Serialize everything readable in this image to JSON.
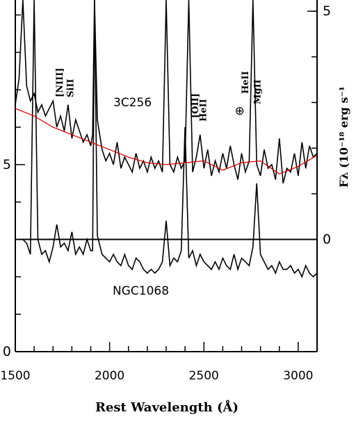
{
  "chart_data": {
    "type": "line",
    "xlabel": "Rest Wavelength (Å)",
    "ylabel_right": "Fλ (10⁻¹⁸ erg s⁻¹",
    "xlim": [
      1500,
      3100
    ],
    "x_ticks": [
      "1500",
      "2000",
      "2500",
      "3000"
    ],
    "x_tick_values": [
      1500,
      2000,
      2500,
      3000
    ],
    "y_left_ticks": [
      {
        "label": "0",
        "value": 0
      },
      {
        "label": "5",
        "value": 5
      }
    ],
    "y_right_ticks": [
      {
        "label": "0",
        "value": 0
      },
      {
        "label": "5",
        "value": 5
      }
    ],
    "ylim_left": [
      0,
      9.4
    ],
    "objects": [
      {
        "name": "3C256"
      },
      {
        "name": "NGC1068"
      }
    ],
    "zero_line_value": 3.0,
    "line_labels": [
      {
        "text": "[NIII]",
        "x": 1750
      },
      {
        "text": "SiII",
        "x": 1808
      },
      {
        "text": "[OII]",
        "x": 2470
      },
      {
        "text": "HeII",
        "x": 2512
      },
      {
        "text": "⊕",
        "x": 2690
      },
      {
        "text": "HeII",
        "x": 2735
      },
      {
        "text": "MgII",
        "x": 2800
      }
    ],
    "continuum_fit_3c256": {
      "x": [
        1500,
        1600,
        1700,
        1800,
        1900,
        2000,
        2100,
        2200,
        2300,
        2400,
        2500,
        2600,
        2700,
        2800,
        2900,
        3000,
        3100
      ],
      "y": [
        6.5,
        6.3,
        6.0,
        5.8,
        5.6,
        5.4,
        5.2,
        5.05,
        5.0,
        5.05,
        5.1,
        4.85,
        5.05,
        5.1,
        4.75,
        4.95,
        5.25
      ]
    },
    "spectrum_3c256": {
      "x": [
        1500,
        1520,
        1540,
        1560,
        1580,
        1600,
        1620,
        1640,
        1660,
        1680,
        1700,
        1720,
        1740,
        1760,
        1780,
        1800,
        1820,
        1840,
        1860,
        1880,
        1900,
        1910,
        1920,
        1935,
        1960,
        1980,
        2000,
        2020,
        2040,
        2060,
        2080,
        2100,
        2120,
        2140,
        2160,
        2180,
        2200,
        2220,
        2240,
        2260,
        2280,
        2300,
        2320,
        2340,
        2360,
        2380,
        2400,
        2420,
        2440,
        2460,
        2480,
        2500,
        2520,
        2540,
        2560,
        2580,
        2600,
        2620,
        2640,
        2660,
        2680,
        2700,
        2720,
        2740,
        2760,
        2780,
        2800,
        2820,
        2840,
        2860,
        2880,
        2900,
        2920,
        2940,
        2960,
        2980,
        3000,
        3020,
        3040,
        3060,
        3080,
        3100
      ],
      "y": [
        6.6,
        7.3,
        9.4,
        7.1,
        6.7,
        6.9,
        6.4,
        6.6,
        6.3,
        6.5,
        6.7,
        6.0,
        6.3,
        5.9,
        6.6,
        5.7,
        6.2,
        5.9,
        5.6,
        5.8,
        5.5,
        5.8,
        9.4,
        6.2,
        5.4,
        5.1,
        5.3,
        5.0,
        5.6,
        4.9,
        5.2,
        5.0,
        4.8,
        5.3,
        4.9,
        5.1,
        4.8,
        5.2,
        4.9,
        5.1,
        4.8,
        9.4,
        5.0,
        4.8,
        5.2,
        4.9,
        5.1,
        9.4,
        4.8,
        5.2,
        5.8,
        4.9,
        5.4,
        4.7,
        5.1,
        4.8,
        5.3,
        4.9,
        5.5,
        5.0,
        4.6,
        5.3,
        4.8,
        5.1,
        9.4,
        5.0,
        4.7,
        5.4,
        4.9,
        5.0,
        4.6,
        5.7,
        4.5,
        4.9,
        4.8,
        5.3,
        4.7,
        5.6,
        4.9,
        5.5,
        5.2,
        5.3
      ]
    },
    "spectrum_ngc1068": {
      "x": [
        1500,
        1540,
        1560,
        1580,
        1600,
        1620,
        1640,
        1660,
        1680,
        1700,
        1720,
        1740,
        1760,
        1780,
        1800,
        1820,
        1840,
        1860,
        1880,
        1900,
        1910,
        1920,
        1935,
        1960,
        1980,
        2000,
        2020,
        2040,
        2060,
        2080,
        2100,
        2120,
        2140,
        2160,
        2180,
        2200,
        2220,
        2240,
        2260,
        2280,
        2300,
        2320,
        2340,
        2360,
        2380,
        2400,
        2420,
        2440,
        2460,
        2480,
        2500,
        2520,
        2540,
        2560,
        2580,
        2600,
        2620,
        2640,
        2660,
        2680,
        2700,
        2720,
        2740,
        2760,
        2780,
        2800,
        2820,
        2840,
        2860,
        2880,
        2900,
        2920,
        2940,
        2960,
        2980,
        3000,
        3020,
        3040,
        3060,
        3080,
        3100
      ],
      "y": [
        3.0,
        3.0,
        2.9,
        2.6,
        9.4,
        3.0,
        2.6,
        2.7,
        2.4,
        2.8,
        3.4,
        2.8,
        2.9,
        2.7,
        3.2,
        2.6,
        2.8,
        2.6,
        3.0,
        2.7,
        2.7,
        9.4,
        3.1,
        2.6,
        2.5,
        2.4,
        2.6,
        2.4,
        2.3,
        2.6,
        2.3,
        2.2,
        2.5,
        2.4,
        2.2,
        2.1,
        2.2,
        2.1,
        2.2,
        2.4,
        3.5,
        2.3,
        2.5,
        2.4,
        2.7,
        6.0,
        2.5,
        2.7,
        2.3,
        2.6,
        2.4,
        2.3,
        2.2,
        2.4,
        2.2,
        2.5,
        2.3,
        2.2,
        2.6,
        2.2,
        2.5,
        2.4,
        2.3,
        2.8,
        4.5,
        2.6,
        2.4,
        2.2,
        2.3,
        2.1,
        2.4,
        2.2,
        2.2,
        2.3,
        2.1,
        2.2,
        2.0,
        2.3,
        2.1,
        2.0,
        2.1
      ]
    }
  }
}
